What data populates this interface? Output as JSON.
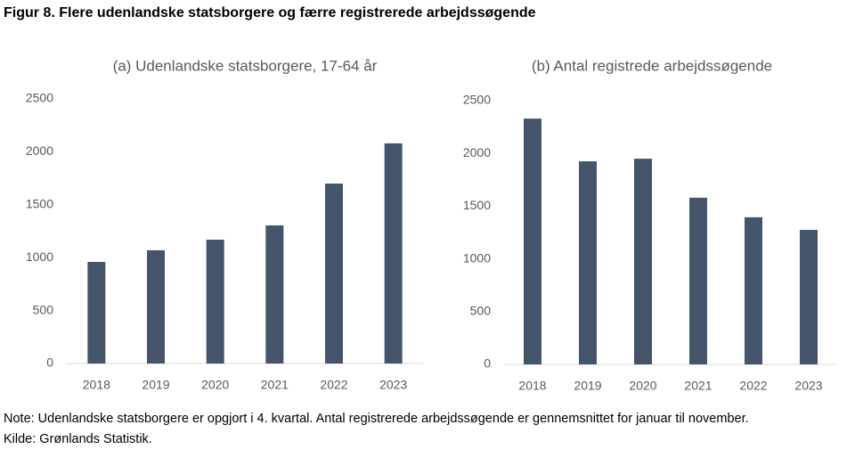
{
  "figure_title": "Figur 8. Flere udenlandske statsborgere og færre registrerede arbejdssøgende",
  "note": "Note: Udenlandske statsborgere er opgjort i 4. kvartal. Antal registrerede arbejdssøgende er gennemsnittet for januar til november.",
  "source": "Kilde: Grønlands Statistik.",
  "chart_data": [
    {
      "type": "bar",
      "title": "(a) Udenlandske statsborgere, 17-64 år",
      "categories": [
        "2018",
        "2019",
        "2020",
        "2021",
        "2022",
        "2023"
      ],
      "values": [
        960,
        1070,
        1170,
        1305,
        1700,
        2080
      ],
      "color": "#44546a",
      "ylim": [
        0,
        2500
      ],
      "yticks": [
        0,
        500,
        1000,
        1500,
        2000,
        2500
      ],
      "grid": false
    },
    {
      "type": "bar",
      "title": "(b) Antal registrede arbejdssøgende",
      "categories": [
        "2018",
        "2019",
        "2020",
        "2021",
        "2022",
        "2023"
      ],
      "values": [
        2330,
        1925,
        1950,
        1580,
        1395,
        1275
      ],
      "color": "#44546a",
      "ylim": [
        0,
        2500
      ],
      "yticks": [
        0,
        500,
        1000,
        1500,
        2000,
        2500
      ],
      "grid": false
    }
  ]
}
